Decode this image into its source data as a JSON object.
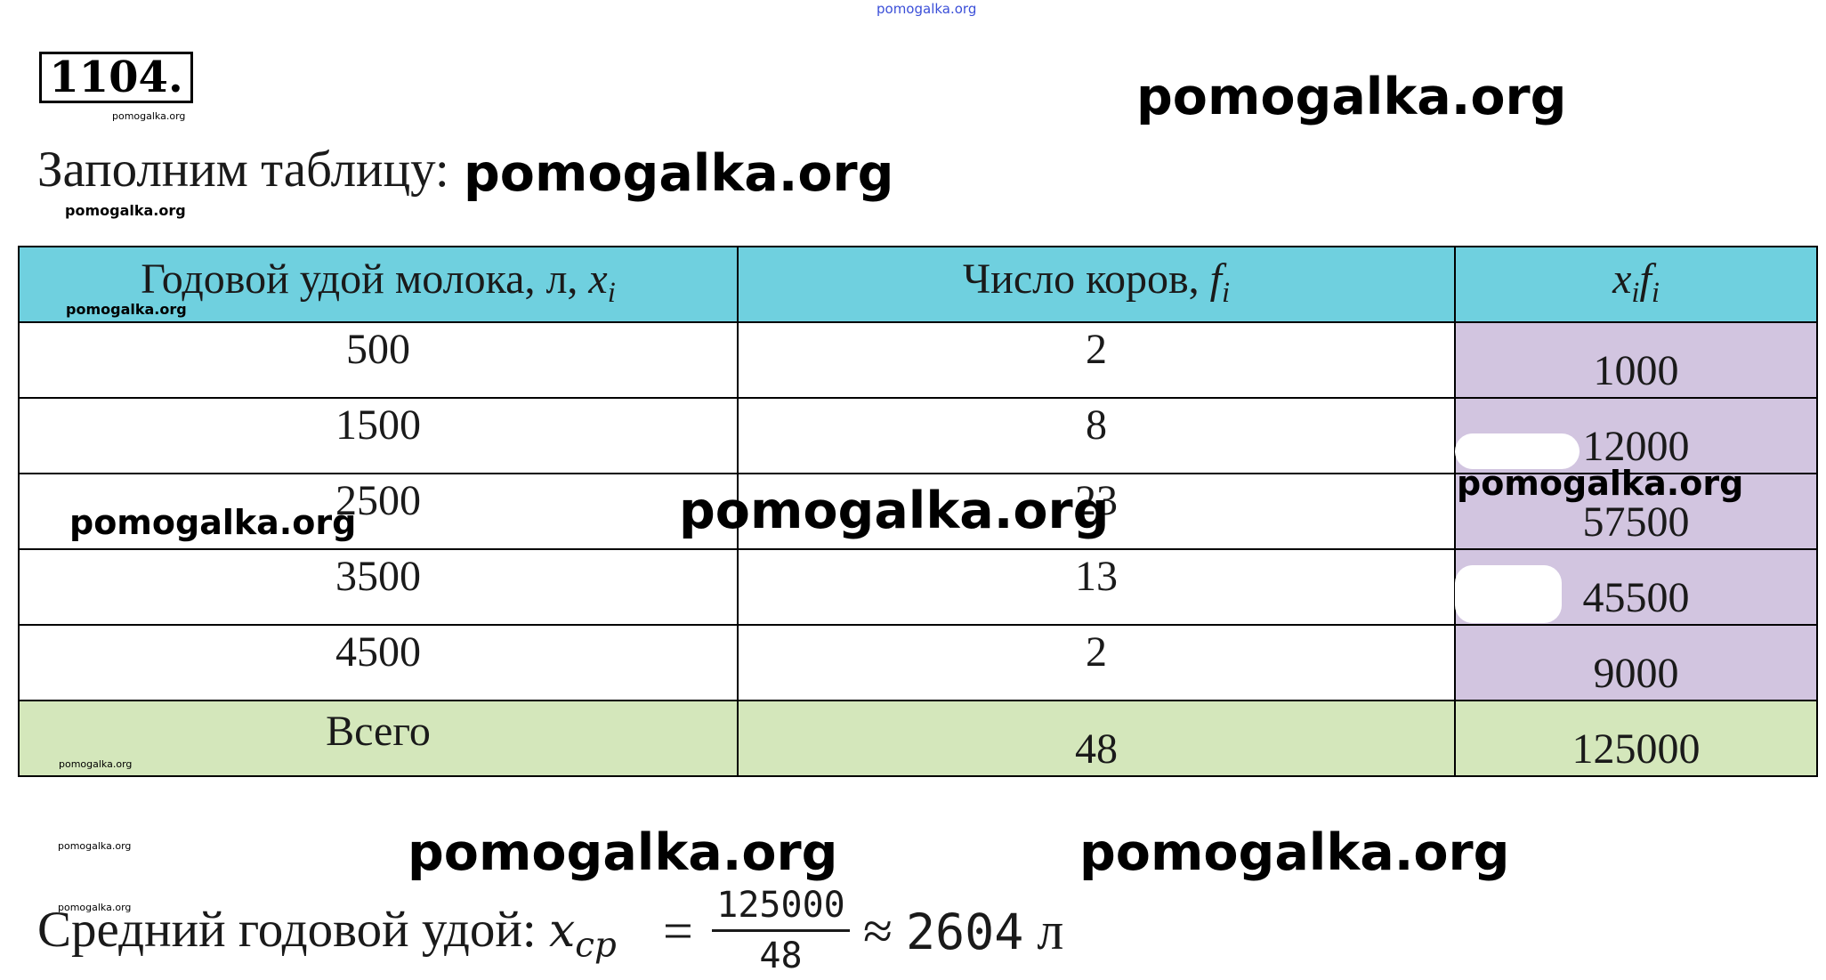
{
  "watermark": {
    "top_small": "pomogalka.org",
    "large_right": "pomogalka.org",
    "after_intro": "pomogalka.org",
    "tiny_1": "pomogalka.org",
    "tiny_2": "pomogalka.org",
    "tiny_3": "pomogalka.org",
    "tiny_4": "pomogalka.org",
    "tiny_5": "pomogalka.org",
    "tiny_6": "pomogalka.org",
    "table_left": "pomogalka.org",
    "table_center": "pomogalka.org",
    "table_right": "pomogalka.org",
    "bottom_left": "pomogalka.org",
    "bottom_right": "pomogalka.org"
  },
  "problem_number": "1104.",
  "intro_text": "Заполним таблицу:",
  "table": {
    "headers": [
      {
        "text": "Годовой удой молока, л, ",
        "var": "x",
        "sub": "i"
      },
      {
        "text": "Число коров, ",
        "var": "f",
        "sub": "i"
      },
      {
        "text": "",
        "var": "x",
        "sub": "i",
        "var2": "f",
        "sub2": "i"
      }
    ],
    "rows": [
      {
        "milk": "500",
        "cows": "2",
        "product": "1000"
      },
      {
        "milk": "1500",
        "cows": "8",
        "product": "12000"
      },
      {
        "milk": "2500",
        "cows": "23",
        "product": "57500"
      },
      {
        "milk": "3500",
        "cows": "13",
        "product": "45500"
      },
      {
        "milk": "4500",
        "cows": "2",
        "product": "9000"
      }
    ],
    "total": {
      "label": "Всего",
      "cows": "48",
      "product": "125000"
    }
  },
  "result": {
    "label": "Средний годовой удой: ",
    "var": "x",
    "sub": "cp",
    "equals": "=",
    "numerator": "125000",
    "denominator": "48",
    "approx": "≈",
    "value": "2604",
    "unit": "л"
  },
  "colors": {
    "header_bg": "#6fd0df",
    "product_bg": "#d2c5e0",
    "total_bg": "#d4e7bb"
  }
}
